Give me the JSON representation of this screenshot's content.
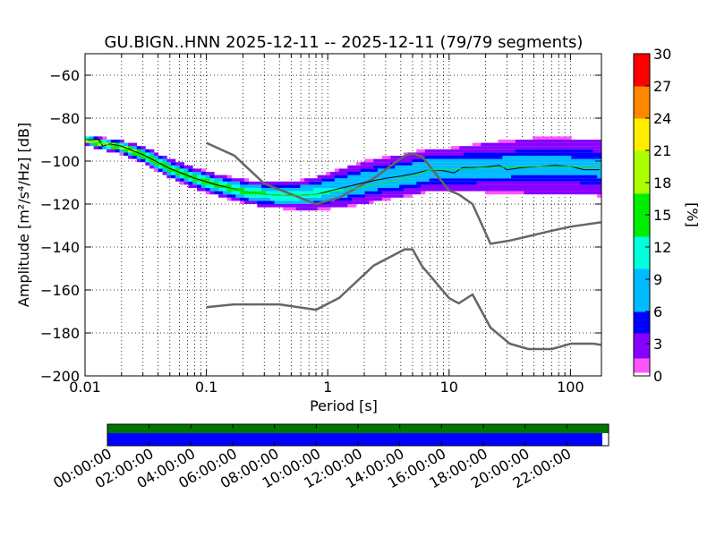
{
  "chart_data": {
    "type": "heatmap",
    "title": "GU.BIGN..HNN   2025-12-11 -- 2025-12-11  (79/79 segments)",
    "xlabel": "Period [s]",
    "ylabel": "Amplitude [m²/s⁴/Hz] [dB]",
    "xscale": "log",
    "xlim": [
      0.01,
      180
    ],
    "ylim": [
      -200,
      -50
    ],
    "x_ticks": [
      {
        "value": 0.01,
        "label": "0.01"
      },
      {
        "value": 0.1,
        "label": "0.1"
      },
      {
        "value": 1,
        "label": "1"
      },
      {
        "value": 10,
        "label": "10"
      },
      {
        "value": 100,
        "label": "100"
      }
    ],
    "y_ticks": [
      {
        "value": -60,
        "label": "−60"
      },
      {
        "value": -80,
        "label": "−80"
      },
      {
        "value": -100,
        "label": "−100"
      },
      {
        "value": -120,
        "label": "−120"
      },
      {
        "value": -140,
        "label": "−140"
      },
      {
        "value": -160,
        "label": "−160"
      },
      {
        "value": -180,
        "label": "−180"
      },
      {
        "value": -200,
        "label": "−200"
      }
    ],
    "grid": true,
    "colorbar": {
      "label": "[%]",
      "range": [
        0,
        30
      ],
      "ticks": [
        {
          "value": 0,
          "label": "0"
        },
        {
          "value": 3,
          "label": "3"
        },
        {
          "value": 6,
          "label": "6"
        },
        {
          "value": 9,
          "label": "9"
        },
        {
          "value": 12,
          "label": "12"
        },
        {
          "value": 15,
          "label": "15"
        },
        {
          "value": 18,
          "label": "18"
        },
        {
          "value": 21,
          "label": "21"
        },
        {
          "value": 24,
          "label": "24"
        },
        {
          "value": 27,
          "label": "27"
        },
        {
          "value": 30,
          "label": "30"
        }
      ]
    },
    "series": [
      {
        "name": "NHNM",
        "color": "#666666",
        "points": [
          [
            0.1,
            -91.5
          ],
          [
            0.17,
            -97.4
          ],
          [
            0.3,
            -110.5
          ],
          [
            0.8,
            -120
          ],
          [
            1.24,
            -117
          ],
          [
            2.4,
            -108
          ],
          [
            4.3,
            -97.5
          ],
          [
            5,
            -96.5
          ],
          [
            6,
            -98
          ],
          [
            10,
            -113.7
          ],
          [
            12,
            -115.5
          ],
          [
            15.6,
            -120
          ],
          [
            21.9,
            -138.5
          ],
          [
            31.6,
            -137
          ],
          [
            45,
            -135
          ],
          [
            70,
            -132.4
          ],
          [
            101,
            -130.5
          ],
          [
            178,
            -128.5
          ]
        ]
      },
      {
        "name": "NLNM",
        "color": "#666666",
        "points": [
          [
            0.1,
            -168
          ],
          [
            0.17,
            -166.7
          ],
          [
            0.4,
            -166.7
          ],
          [
            0.8,
            -169.2
          ],
          [
            1.24,
            -163.7
          ],
          [
            2.4,
            -148.6
          ],
          [
            4.3,
            -141.1
          ],
          [
            5,
            -141.1
          ],
          [
            6,
            -149
          ],
          [
            10,
            -163.8
          ],
          [
            12,
            -166.2
          ],
          [
            15.6,
            -162.1
          ],
          [
            21.9,
            -177.5
          ],
          [
            31.6,
            -185
          ],
          [
            45,
            -187.5
          ],
          [
            70,
            -187.5
          ],
          [
            101,
            -185
          ],
          [
            154,
            -185
          ],
          [
            178,
            -185.5
          ]
        ]
      },
      {
        "name": "mode",
        "color": "#000000",
        "points": [
          [
            0.01,
            -90
          ],
          [
            0.013,
            -90
          ],
          [
            0.014,
            -93
          ],
          [
            0.016,
            -92
          ],
          [
            0.02,
            -93
          ],
          [
            0.03,
            -97
          ],
          [
            0.05,
            -103.5
          ],
          [
            0.08,
            -108
          ],
          [
            0.12,
            -111
          ],
          [
            0.2,
            -114
          ],
          [
            0.3,
            -115.5
          ],
          [
            0.5,
            -116
          ],
          [
            0.8,
            -115.5
          ],
          [
            1.2,
            -113
          ],
          [
            2,
            -110
          ],
          [
            3,
            -108
          ],
          [
            4,
            -107
          ],
          [
            5,
            -106
          ],
          [
            7,
            -104
          ],
          [
            9,
            -104.5
          ],
          [
            11,
            -105.5
          ],
          [
            13,
            -103
          ],
          [
            18,
            -103
          ],
          [
            26,
            -102
          ],
          [
            30,
            -104
          ],
          [
            40,
            -103
          ],
          [
            55,
            -102.5
          ],
          [
            75,
            -102
          ],
          [
            100,
            -102.5
          ],
          [
            130,
            -104
          ],
          [
            175,
            -104
          ]
        ]
      },
      {
        "name": "mean",
        "color": "#16e816",
        "points": [
          [
            0.01,
            -90
          ],
          [
            0.014,
            -92
          ],
          [
            0.02,
            -93.5
          ],
          [
            0.03,
            -97.5
          ],
          [
            0.05,
            -104
          ],
          [
            0.08,
            -108.5
          ],
          [
            0.12,
            -111.5
          ],
          [
            0.2,
            -114
          ],
          [
            0.3,
            -115.5
          ],
          [
            0.5,
            -116
          ],
          [
            0.8,
            -115.5
          ],
          [
            1.2,
            -114
          ],
          [
            2,
            -112
          ],
          [
            3,
            -110
          ],
          [
            4,
            -108.5
          ],
          [
            5,
            -107
          ],
          [
            7,
            -104
          ],
          [
            10,
            -104
          ],
          [
            20,
            -103
          ],
          [
            50,
            -102.5
          ],
          [
            100,
            -102.5
          ],
          [
            175,
            -103
          ]
        ]
      }
    ],
    "density_band": {
      "center": [
        [
          0.01,
          -90
        ],
        [
          0.014,
          -92
        ],
        [
          0.02,
          -93.5
        ],
        [
          0.03,
          -97
        ],
        [
          0.05,
          -103.5
        ],
        [
          0.08,
          -108
        ],
        [
          0.12,
          -111
        ],
        [
          0.2,
          -114
        ],
        [
          0.3,
          -115.5
        ],
        [
          0.5,
          -116
        ],
        [
          0.8,
          -115
        ],
        [
          1.2,
          -113
        ],
        [
          2,
          -110
        ],
        [
          3,
          -108
        ],
        [
          4,
          -107
        ],
        [
          5,
          -106
        ],
        [
          7,
          -104
        ],
        [
          10,
          -104
        ],
        [
          20,
          -103
        ],
        [
          50,
          -102.5
        ],
        [
          100,
          -102.5
        ],
        [
          175,
          -103
        ]
      ],
      "spread": [
        [
          0.01,
          1
        ],
        [
          0.05,
          2
        ],
        [
          0.2,
          2.5
        ],
        [
          0.5,
          3
        ],
        [
          1,
          4
        ],
        [
          2,
          5
        ],
        [
          5,
          5
        ],
        [
          10,
          5
        ],
        [
          20,
          6
        ],
        [
          50,
          7
        ],
        [
          100,
          7
        ],
        [
          175,
          7
        ]
      ]
    }
  },
  "timeline": {
    "ticks": [
      {
        "hour": 0,
        "label": "00:00:00"
      },
      {
        "hour": 2,
        "label": "02:00:00"
      },
      {
        "hour": 4,
        "label": "04:00:00"
      },
      {
        "hour": 6,
        "label": "06:00:00"
      },
      {
        "hour": 8,
        "label": "08:00:00"
      },
      {
        "hour": 10,
        "label": "10:00:00"
      },
      {
        "hour": 12,
        "label": "12:00:00"
      },
      {
        "hour": 14,
        "label": "14:00:00"
      },
      {
        "hour": 16,
        "label": "16:00:00"
      },
      {
        "hour": 18,
        "label": "18:00:00"
      },
      {
        "hour": 20,
        "label": "20:00:00"
      },
      {
        "hour": 22,
        "label": "22:00:00"
      }
    ],
    "range_hours": [
      0,
      24
    ],
    "data_available": {
      "start_hour": 0,
      "end_hour": 24,
      "color": "#007700"
    },
    "segments_used": {
      "start_hour": 0,
      "end_hour": 23.7,
      "color": "#0000ff"
    }
  }
}
